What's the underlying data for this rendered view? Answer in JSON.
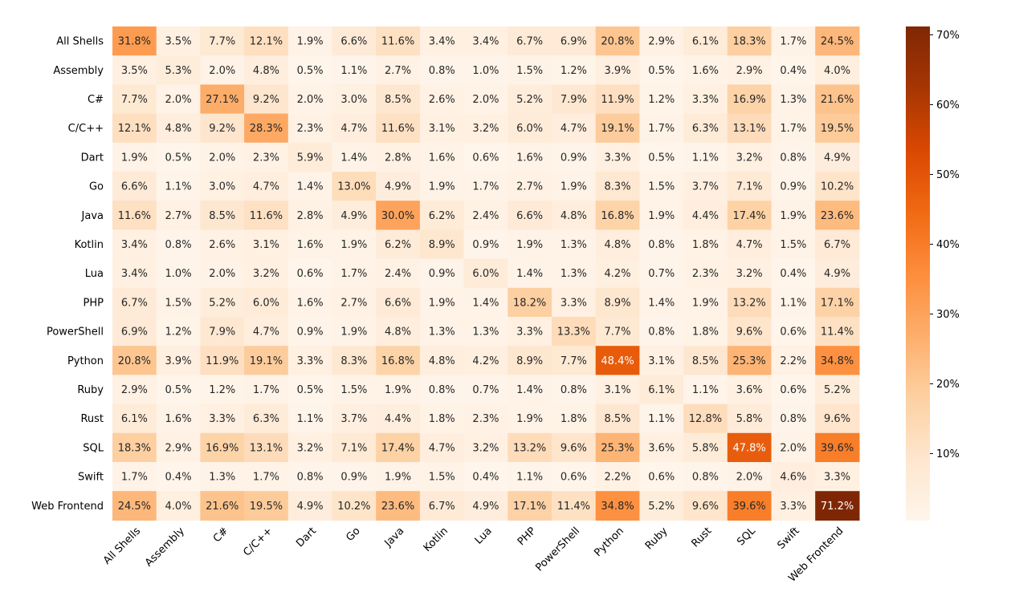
{
  "chart_data": {
    "type": "heatmap",
    "title": "",
    "xlabel": "",
    "ylabel": "",
    "rows": [
      "All Shells",
      "Assembly",
      "C#",
      "C/C++",
      "Dart",
      "Go",
      "Java",
      "Kotlin",
      "Lua",
      "PHP",
      "PowerShell",
      "Python",
      "Ruby",
      "Rust",
      "SQL",
      "Swift",
      "Web Frontend"
    ],
    "columns": [
      "All Shells",
      "Assembly",
      "C#",
      "C/C++",
      "Dart",
      "Go",
      "Java",
      "Kotlin",
      "Lua",
      "PHP",
      "PowerShell",
      "Python",
      "Ruby",
      "Rust",
      "SQL",
      "Swift",
      "Web Frontend"
    ],
    "values": [
      [
        31.8,
        3.5,
        7.7,
        12.1,
        1.9,
        6.6,
        11.6,
        3.4,
        3.4,
        6.7,
        6.9,
        20.8,
        2.9,
        6.1,
        18.3,
        1.7,
        24.5
      ],
      [
        3.5,
        5.3,
        2.0,
        4.8,
        0.5,
        1.1,
        2.7,
        0.8,
        1.0,
        1.5,
        1.2,
        3.9,
        0.5,
        1.6,
        2.9,
        0.4,
        4.0
      ],
      [
        7.7,
        2.0,
        27.1,
        9.2,
        2.0,
        3.0,
        8.5,
        2.6,
        2.0,
        5.2,
        7.9,
        11.9,
        1.2,
        3.3,
        16.9,
        1.3,
        21.6
      ],
      [
        12.1,
        4.8,
        9.2,
        28.3,
        2.3,
        4.7,
        11.6,
        3.1,
        3.2,
        6.0,
        4.7,
        19.1,
        1.7,
        6.3,
        13.1,
        1.7,
        19.5
      ],
      [
        1.9,
        0.5,
        2.0,
        2.3,
        5.9,
        1.4,
        2.8,
        1.6,
        0.6,
        1.6,
        0.9,
        3.3,
        0.5,
        1.1,
        3.2,
        0.8,
        4.9
      ],
      [
        6.6,
        1.1,
        3.0,
        4.7,
        1.4,
        13.0,
        4.9,
        1.9,
        1.7,
        2.7,
        1.9,
        8.3,
        1.5,
        3.7,
        7.1,
        0.9,
        10.2
      ],
      [
        11.6,
        2.7,
        8.5,
        11.6,
        2.8,
        4.9,
        30.0,
        6.2,
        2.4,
        6.6,
        4.8,
        16.8,
        1.9,
        4.4,
        17.4,
        1.9,
        23.6
      ],
      [
        3.4,
        0.8,
        2.6,
        3.1,
        1.6,
        1.9,
        6.2,
        8.9,
        0.9,
        1.9,
        1.3,
        4.8,
        0.8,
        1.8,
        4.7,
        1.5,
        6.7
      ],
      [
        3.4,
        1.0,
        2.0,
        3.2,
        0.6,
        1.7,
        2.4,
        0.9,
        6.0,
        1.4,
        1.3,
        4.2,
        0.7,
        2.3,
        3.2,
        0.4,
        4.9
      ],
      [
        6.7,
        1.5,
        5.2,
        6.0,
        1.6,
        2.7,
        6.6,
        1.9,
        1.4,
        18.2,
        3.3,
        8.9,
        1.4,
        1.9,
        13.2,
        1.1,
        17.1
      ],
      [
        6.9,
        1.2,
        7.9,
        4.7,
        0.9,
        1.9,
        4.8,
        1.3,
        1.3,
        3.3,
        13.3,
        7.7,
        0.8,
        1.8,
        9.6,
        0.6,
        11.4
      ],
      [
        20.8,
        3.9,
        11.9,
        19.1,
        3.3,
        8.3,
        16.8,
        4.8,
        4.2,
        8.9,
        7.7,
        48.4,
        3.1,
        8.5,
        25.3,
        2.2,
        34.8
      ],
      [
        2.9,
        0.5,
        1.2,
        1.7,
        0.5,
        1.5,
        1.9,
        0.8,
        0.7,
        1.4,
        0.8,
        3.1,
        6.1,
        1.1,
        3.6,
        0.6,
        5.2
      ],
      [
        6.1,
        1.6,
        3.3,
        6.3,
        1.1,
        3.7,
        4.4,
        1.8,
        2.3,
        1.9,
        1.8,
        8.5,
        1.1,
        12.8,
        5.8,
        0.8,
        9.6
      ],
      [
        18.3,
        2.9,
        16.9,
        13.1,
        3.2,
        7.1,
        17.4,
        4.7,
        3.2,
        13.2,
        9.6,
        25.3,
        3.6,
        5.8,
        47.8,
        2.0,
        39.6
      ],
      [
        1.7,
        0.4,
        1.3,
        1.7,
        0.8,
        0.9,
        1.9,
        1.5,
        0.4,
        1.1,
        0.6,
        2.2,
        0.6,
        0.8,
        2.0,
        4.6,
        3.3
      ],
      [
        24.5,
        4.0,
        21.6,
        19.5,
        4.9,
        10.2,
        23.6,
        6.7,
        4.9,
        17.1,
        11.4,
        34.8,
        5.2,
        9.6,
        39.6,
        3.3,
        71.2
      ]
    ],
    "value_format": "percent_1dp",
    "colormap": "Oranges",
    "colorbar": {
      "ticks": [
        10,
        20,
        30,
        40,
        50,
        60,
        70
      ],
      "tick_labels": [
        "10%",
        "20%",
        "30%",
        "40%",
        "50%",
        "60%",
        "70%"
      ],
      "range": [
        0.4,
        71.2
      ]
    },
    "grid": false,
    "legend": "colorbar-right"
  }
}
